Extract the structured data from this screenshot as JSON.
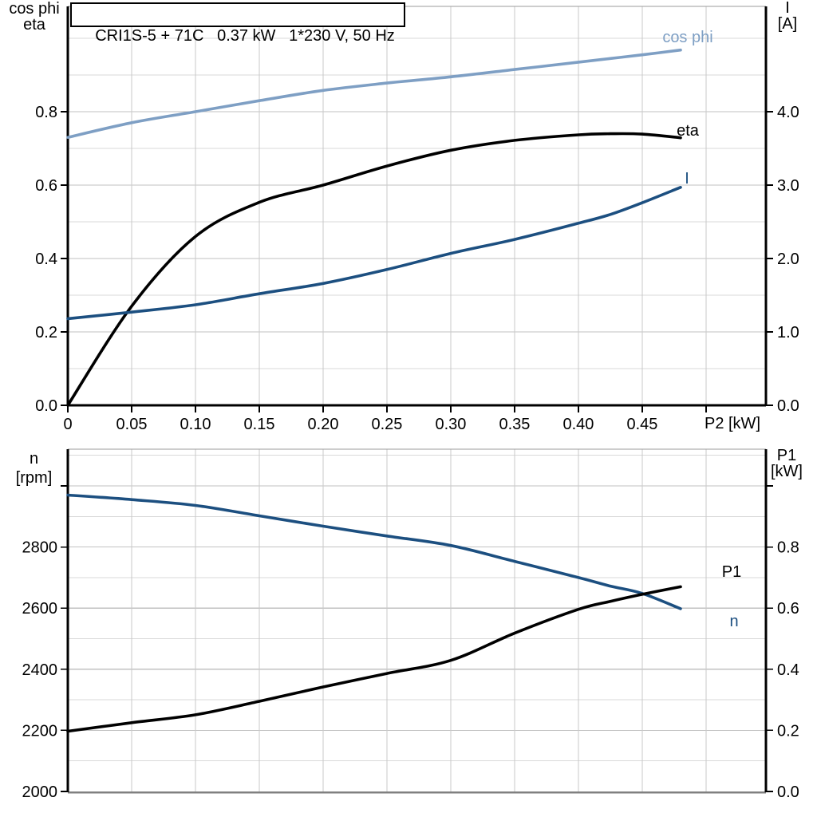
{
  "title": "CRI1S-5 + 71C   0.37 kW   1*230 V, 50 Hz",
  "axes": {
    "top_left": {
      "line1": "cos phi",
      "line2": "eta"
    },
    "top_right": {
      "line1": "I",
      "line2": "[A]"
    },
    "x_axis": {
      "label": "P2 [kW]"
    },
    "bottom_left": {
      "line1": "n",
      "line2": "[rpm]"
    },
    "bottom_right": {
      "line1": "P1",
      "line2": "[kW]"
    }
  },
  "colors": {
    "light_blue": "#7e9fc4",
    "dark_blue": "#1c4f80",
    "black": "#000000",
    "grid_minor": "#d9d9d9",
    "grid_major": "#c2c2c2",
    "grid_vertical": "#c9c9c9",
    "frame_top_gray": "#9b9b9b",
    "frame_bottom_gray": "#808080",
    "axis_black": "#000000"
  },
  "chart_data": [
    {
      "type": "line",
      "id": "top",
      "title": "CRI1S-5 + 71C   0.37 kW   1*230 V, 50 Hz",
      "xlabel": "P2 [kW]",
      "xlim": [
        0,
        0.5469
      ],
      "x_tick_values": [
        0,
        0.05,
        0.1,
        0.15,
        0.2,
        0.25,
        0.3,
        0.35,
        0.4,
        0.45,
        0.5
      ],
      "x_tick_labels": [
        "0",
        "0.05",
        "0.10",
        "0.15",
        "0.20",
        "0.25",
        "0.30",
        "0.35",
        "0.40",
        "0.45",
        ""
      ],
      "left_axis": {
        "label": "cos phi / eta",
        "lim": [
          0,
          1.087
        ],
        "tick_values": [
          0.0,
          0.2,
          0.4,
          0.6,
          0.8
        ],
        "tick_labels": [
          "0.0",
          "0.2",
          "0.4",
          "0.6",
          "0.8"
        ],
        "major_grid": [
          0.2,
          0.4,
          0.6,
          0.8
        ],
        "minor_grid": [
          0.1,
          0.3,
          0.5,
          0.7,
          0.9,
          1.0
        ]
      },
      "right_axis": {
        "label": "I [A]",
        "lim": [
          0,
          5.435
        ],
        "tick_values": [
          0.0,
          1.0,
          2.0,
          3.0,
          4.0
        ],
        "tick_labels": [
          "0.0",
          "1.0",
          "2.0",
          "3.0",
          "4.0"
        ]
      },
      "x": [
        0,
        0.05,
        0.1,
        0.15,
        0.2,
        0.25,
        0.3,
        0.35,
        0.4,
        0.425,
        0.45,
        0.48
      ],
      "series": [
        {
          "name": "cos phi",
          "axis": "left",
          "color": "#7e9fc4",
          "values": [
            0.73,
            0.77,
            0.8,
            0.83,
            0.858,
            0.878,
            0.895,
            0.915,
            0.935,
            0.945,
            0.955,
            0.968
          ]
        },
        {
          "name": "eta",
          "axis": "left",
          "color": "#000000",
          "values": [
            0.0,
            0.27,
            0.46,
            0.553,
            0.6,
            0.652,
            0.695,
            0.722,
            0.737,
            0.74,
            0.739,
            0.729
          ]
        },
        {
          "name": "I",
          "axis": "right",
          "color": "#1c4f80",
          "values": [
            1.18,
            1.27,
            1.37,
            1.52,
            1.66,
            1.85,
            2.07,
            2.26,
            2.48,
            2.6,
            2.76,
            2.97
          ]
        }
      ]
    },
    {
      "type": "line",
      "id": "bottom",
      "title": "",
      "xlabel": "",
      "xlim": [
        0,
        0.5469
      ],
      "x_tick_values": [
        0,
        0.05,
        0.1,
        0.15,
        0.2,
        0.25,
        0.3,
        0.35,
        0.4,
        0.45,
        0.5
      ],
      "x_tick_labels": [
        "",
        "",
        "",
        "",
        "",
        "",
        "",
        "",
        "",
        "",
        ""
      ],
      "left_axis": {
        "label": "n [rpm]",
        "lim": [
          2000,
          3120
        ],
        "tick_values": [
          2000,
          2200,
          2400,
          2600,
          2800,
          3000
        ],
        "tick_labels": [
          "2000",
          "2200",
          "2400",
          "2600",
          "2800",
          ""
        ],
        "major_grid": [
          2200,
          2400,
          2600,
          2800,
          3000
        ],
        "minor_grid": [
          2100,
          2300,
          2500,
          2700,
          2900,
          3100
        ]
      },
      "right_axis": {
        "label": "P1 [kW]",
        "lim": [
          0,
          1.12
        ],
        "tick_values": [
          0.0,
          0.2,
          0.4,
          0.6,
          0.8,
          1.0
        ],
        "tick_labels": [
          "0.0",
          "0.2",
          "0.4",
          "0.6",
          "0.8",
          ""
        ]
      },
      "x": [
        0,
        0.05,
        0.1,
        0.15,
        0.2,
        0.25,
        0.3,
        0.35,
        0.4,
        0.425,
        0.45,
        0.48
      ],
      "series": [
        {
          "name": "n",
          "axis": "left",
          "color": "#1c4f80",
          "values": [
            2970,
            2955,
            2936,
            2902,
            2868,
            2836,
            2805,
            2753,
            2700,
            2672,
            2648,
            2598
          ]
        },
        {
          "name": "P1",
          "axis": "right",
          "color": "#000000",
          "values": [
            0.197,
            0.225,
            0.251,
            0.295,
            0.342,
            0.386,
            0.429,
            0.518,
            0.596,
            0.622,
            0.645,
            0.67
          ]
        }
      ]
    }
  ]
}
